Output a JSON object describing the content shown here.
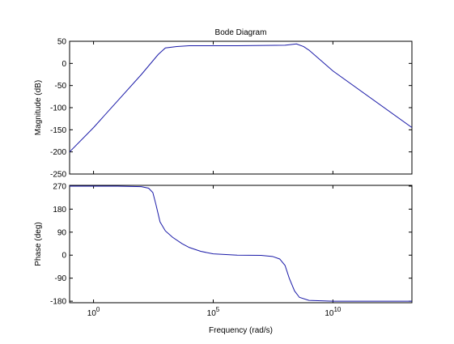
{
  "chart_data": [
    {
      "type": "line",
      "title": "Bode Diagram",
      "ylabel": "Magnitude (dB)",
      "xscale": "log",
      "xlim": [
        0.1,
        20000000000000
      ],
      "ylim": [
        -250,
        50
      ],
      "xticks": [
        {
          "value": 1,
          "label": "10",
          "exponent": "0"
        },
        {
          "value": 100000,
          "label": "10",
          "exponent": "5"
        },
        {
          "value": 10000000000,
          "label": "10",
          "exponent": "10"
        }
      ],
      "show_xtick_labels": false,
      "yticks": [
        -250,
        -200,
        -150,
        -100,
        -50,
        0,
        50
      ],
      "series": [
        {
          "color": "#1a1aa8",
          "x": [
            0.1,
            1,
            10,
            100,
            500,
            1000,
            3000,
            10000,
            1000000,
            100000000,
            200000000,
            300000000,
            600000000,
            1000000000,
            10000000000,
            20000000000000
          ],
          "values": [
            -200,
            -145,
            -85,
            -25,
            20,
            35,
            38,
            40,
            40,
            41,
            43,
            44,
            38,
            30,
            -17,
            -145
          ]
        }
      ]
    },
    {
      "type": "line",
      "ylabel": "Phase (deg)",
      "xlabel": "Frequency  (rad/s)",
      "xscale": "log",
      "xlim": [
        0.1,
        20000000000000
      ],
      "ylim": [
        -186,
        273
      ],
      "xticks": [
        {
          "value": 1,
          "label": "10",
          "exponent": "0"
        },
        {
          "value": 100000,
          "label": "10",
          "exponent": "5"
        },
        {
          "value": 10000000000,
          "label": "10",
          "exponent": "10"
        }
      ],
      "show_xtick_labels": true,
      "yticks": [
        -180,
        -90,
        0,
        90,
        180,
        270
      ],
      "series": [
        {
          "color": "#1a1aa8",
          "x": [
            0.1,
            10,
            100,
            200,
            300,
            400,
            600,
            1000,
            2000,
            5000,
            10000,
            30000,
            100000,
            1000000,
            10000000,
            30000000,
            60000000,
            100000000,
            150000000,
            250000000,
            400000000,
            1000000000,
            10000000000,
            20000000000000
          ],
          "values": [
            270,
            270,
            268,
            262,
            245,
            200,
            130,
            95,
            70,
            45,
            30,
            15,
            5,
            0,
            -1,
            -5,
            -15,
            -40,
            -90,
            -140,
            -165,
            -177,
            -180,
            -180
          ]
        }
      ]
    }
  ]
}
